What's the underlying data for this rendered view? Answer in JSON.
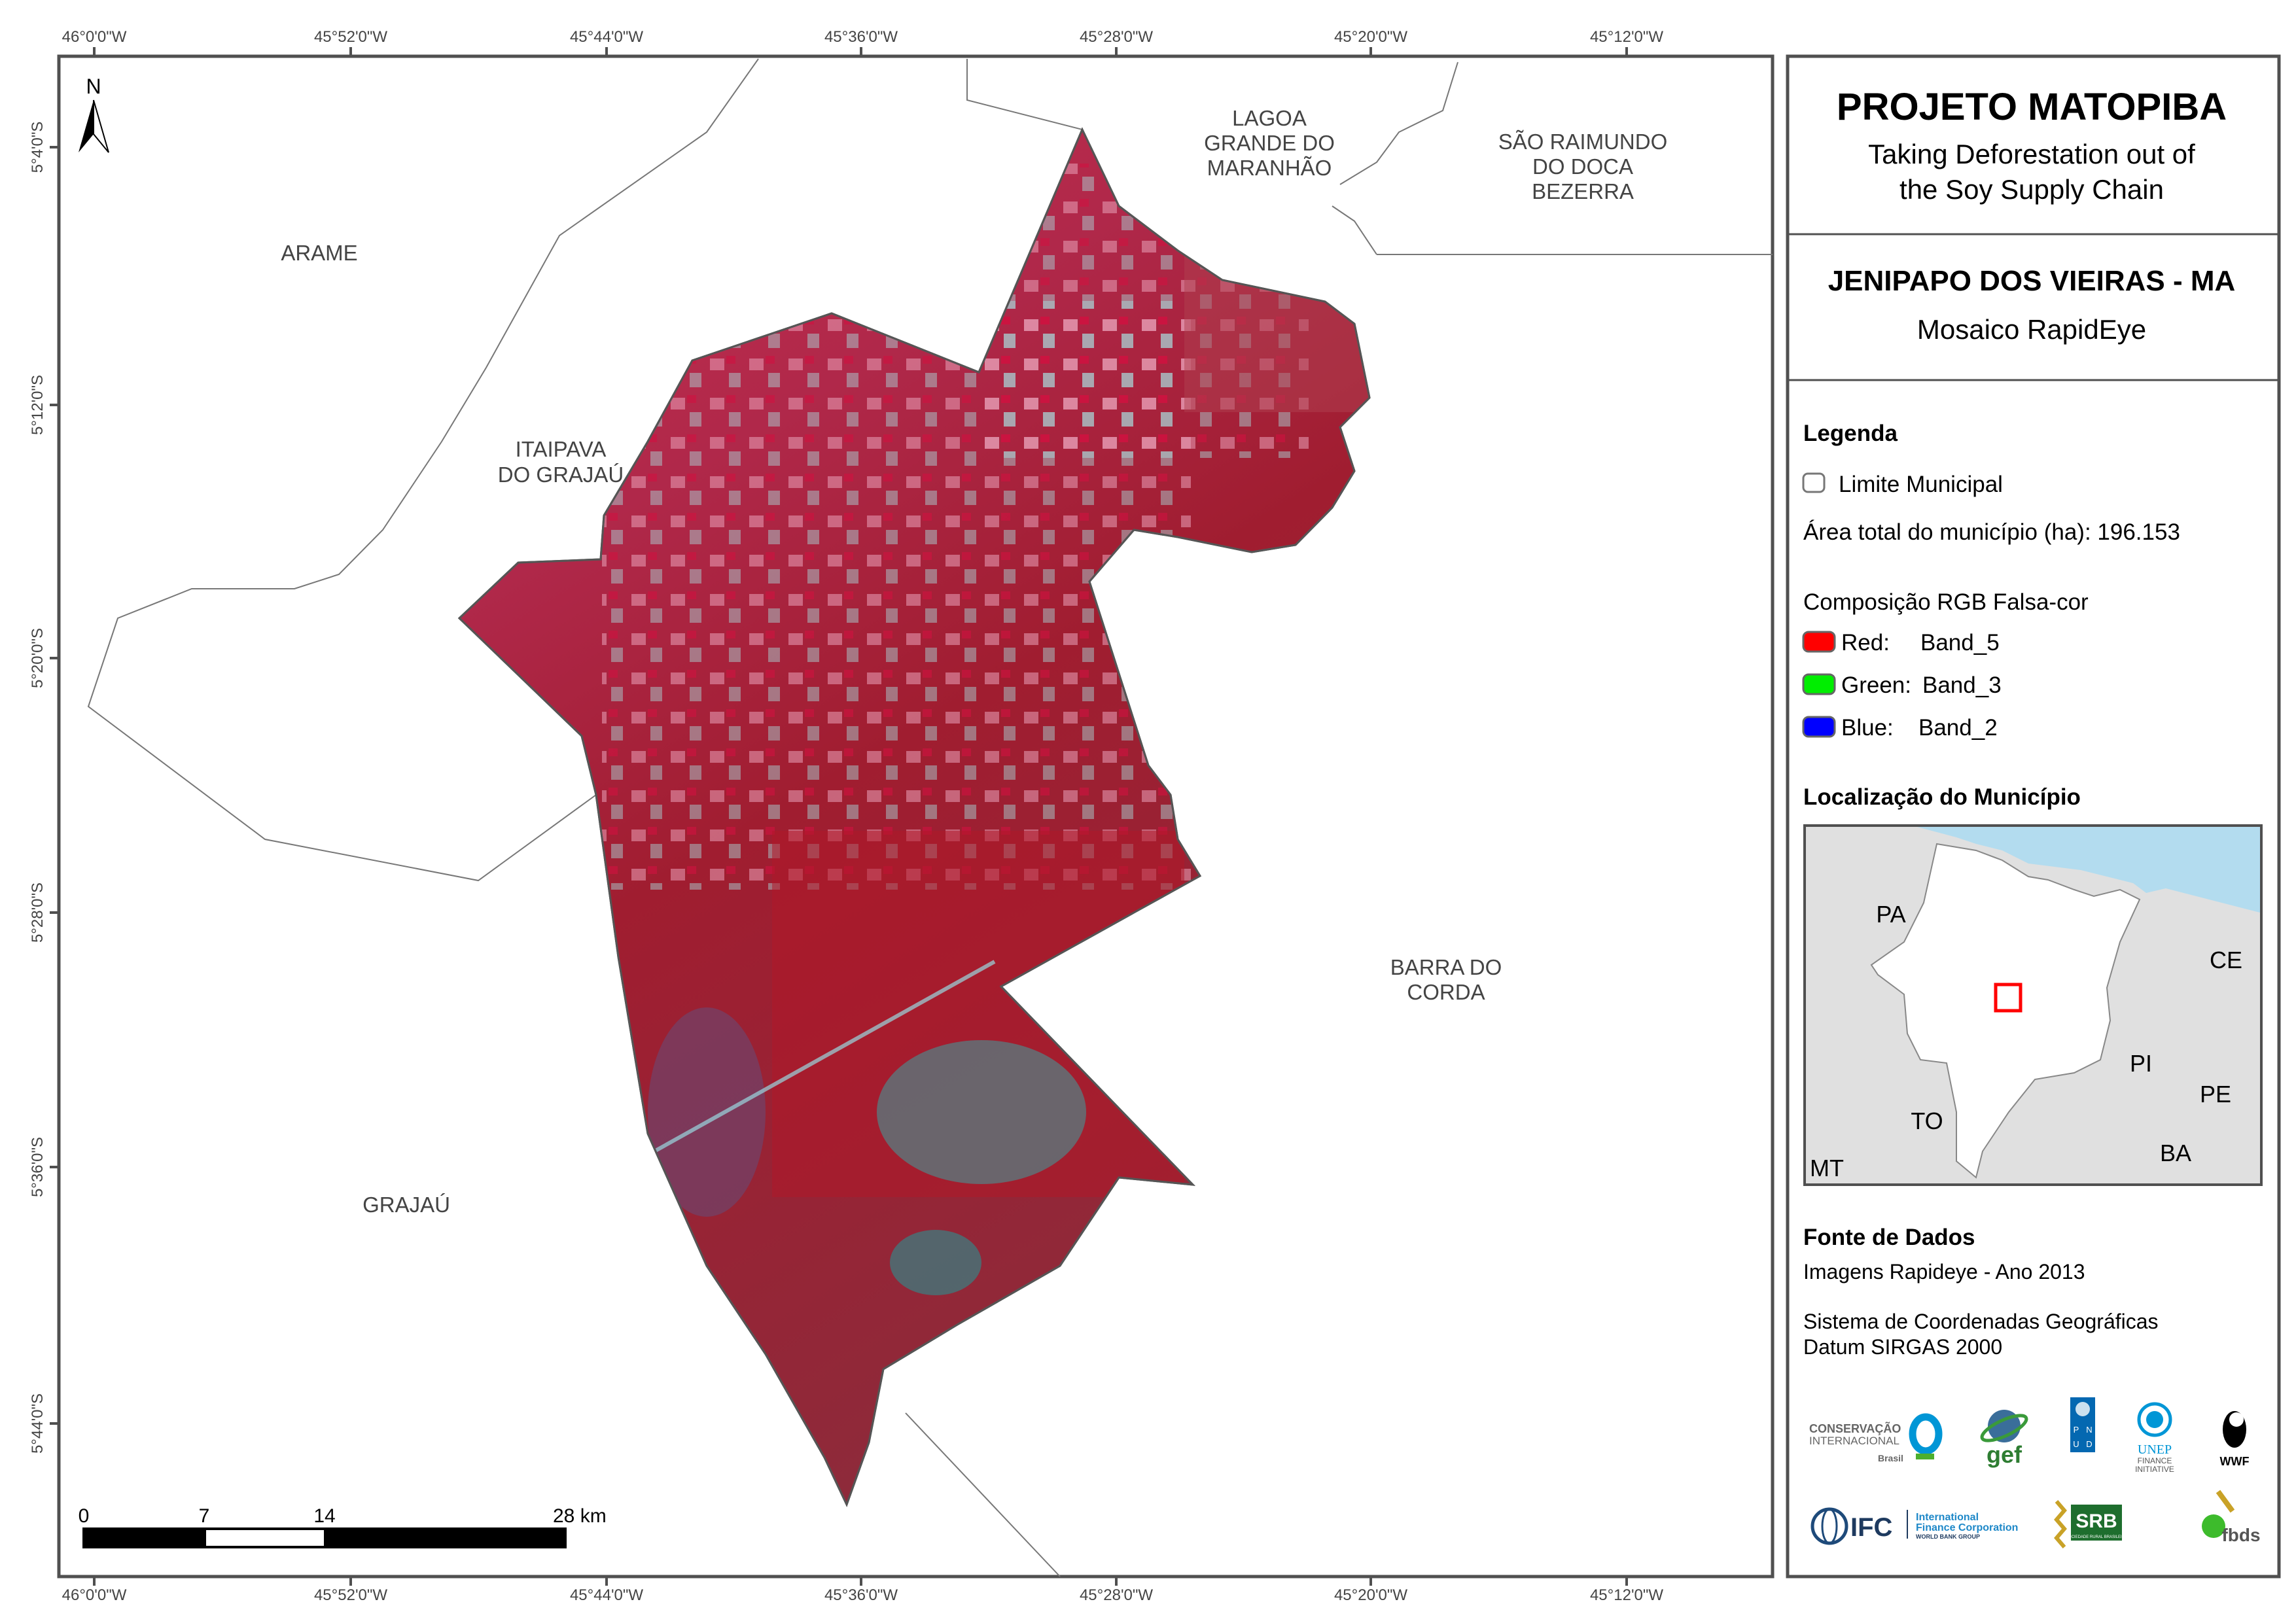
{
  "map": {
    "north_label": "N",
    "top_ticks": [
      "46°0'0\"W",
      "45°52'0\"W",
      "45°44'0\"W",
      "45°36'0\"W",
      "45°28'0\"W",
      "45°20'0\"W",
      "45°12'0\"W"
    ],
    "bottom_ticks": [
      "46°0'0\"W",
      "45°52'0\"W",
      "45°44'0\"W",
      "45°36'0\"W",
      "45°28'0\"W",
      "45°20'0\"W",
      "45°12'0\"W"
    ],
    "left_ticks": [
      "5°4'0\"S",
      "5°12'0\"S",
      "5°20'0\"S",
      "5°28'0\"S",
      "5°36'0\"S",
      "5°44'0\"S"
    ],
    "places": {
      "arame": "ARAME",
      "itaipava": [
        "ITAIPAVA",
        "DO GRAJAÚ"
      ],
      "lagoa": [
        "LAGOA",
        "GRANDE DO",
        "MARANHÃO"
      ],
      "sao_raimundo": [
        "SÃO RAIMUNDO",
        "DO DOCA",
        "BEZERRA"
      ],
      "barra": [
        "BARRA DO",
        "CORDA"
      ],
      "grajau": "GRAJAÚ"
    },
    "scale_bar": {
      "labels": [
        "0",
        "7",
        "14",
        "28 km"
      ]
    }
  },
  "panel": {
    "title": "PROJETO MATOPIBA",
    "subtitle": [
      "Taking Deforestation out of",
      "the Soy Supply Chain"
    ],
    "municipality": "JENIPAPO DOS VIEIRAS - MA",
    "mosaic": "Mosaico RapidEye",
    "legend": {
      "heading": "Legenda",
      "boundary": "Limite Municipal",
      "area": "Área total do município (ha): 196.153",
      "composition": "Composição RGB Falsa-cor",
      "bands": [
        {
          "channel": "Red:",
          "band": "Band_5",
          "color": "#ff0000"
        },
        {
          "channel": "Green:",
          "band": "Band_3",
          "color": "#00ee00"
        },
        {
          "channel": "Blue:",
          "band": "Band_2",
          "color": "#0000ff"
        }
      ]
    },
    "location": {
      "heading": "Localização do Município",
      "states": [
        "PA",
        "CE",
        "PI",
        "PE",
        "TO",
        "BA",
        "MT"
      ]
    },
    "sources": {
      "heading": "Fonte de Dados",
      "images": "Imagens Rapideye - Ano 2013",
      "crs": "Sistema de Coordenadas Geográficas",
      "datum": "Datum SIRGAS 2000"
    },
    "logos": {
      "ci": [
        "CONSERVAÇÃO",
        "INTERNACIONAL",
        "Brasil"
      ],
      "gef": "gef",
      "pnud": [
        "P",
        "N",
        "U",
        "D"
      ],
      "unep": [
        "UNEP",
        "FINANCE",
        "INITIATIVE"
      ],
      "wwf": "WWF",
      "ifc": [
        "IFC",
        "International",
        "Finance Corporation",
        "WORLD BANK GROUP"
      ],
      "srb": [
        "SRB",
        "SOCIEDADE RURAL BRASILEIRA"
      ],
      "fbds": "fbds"
    }
  }
}
